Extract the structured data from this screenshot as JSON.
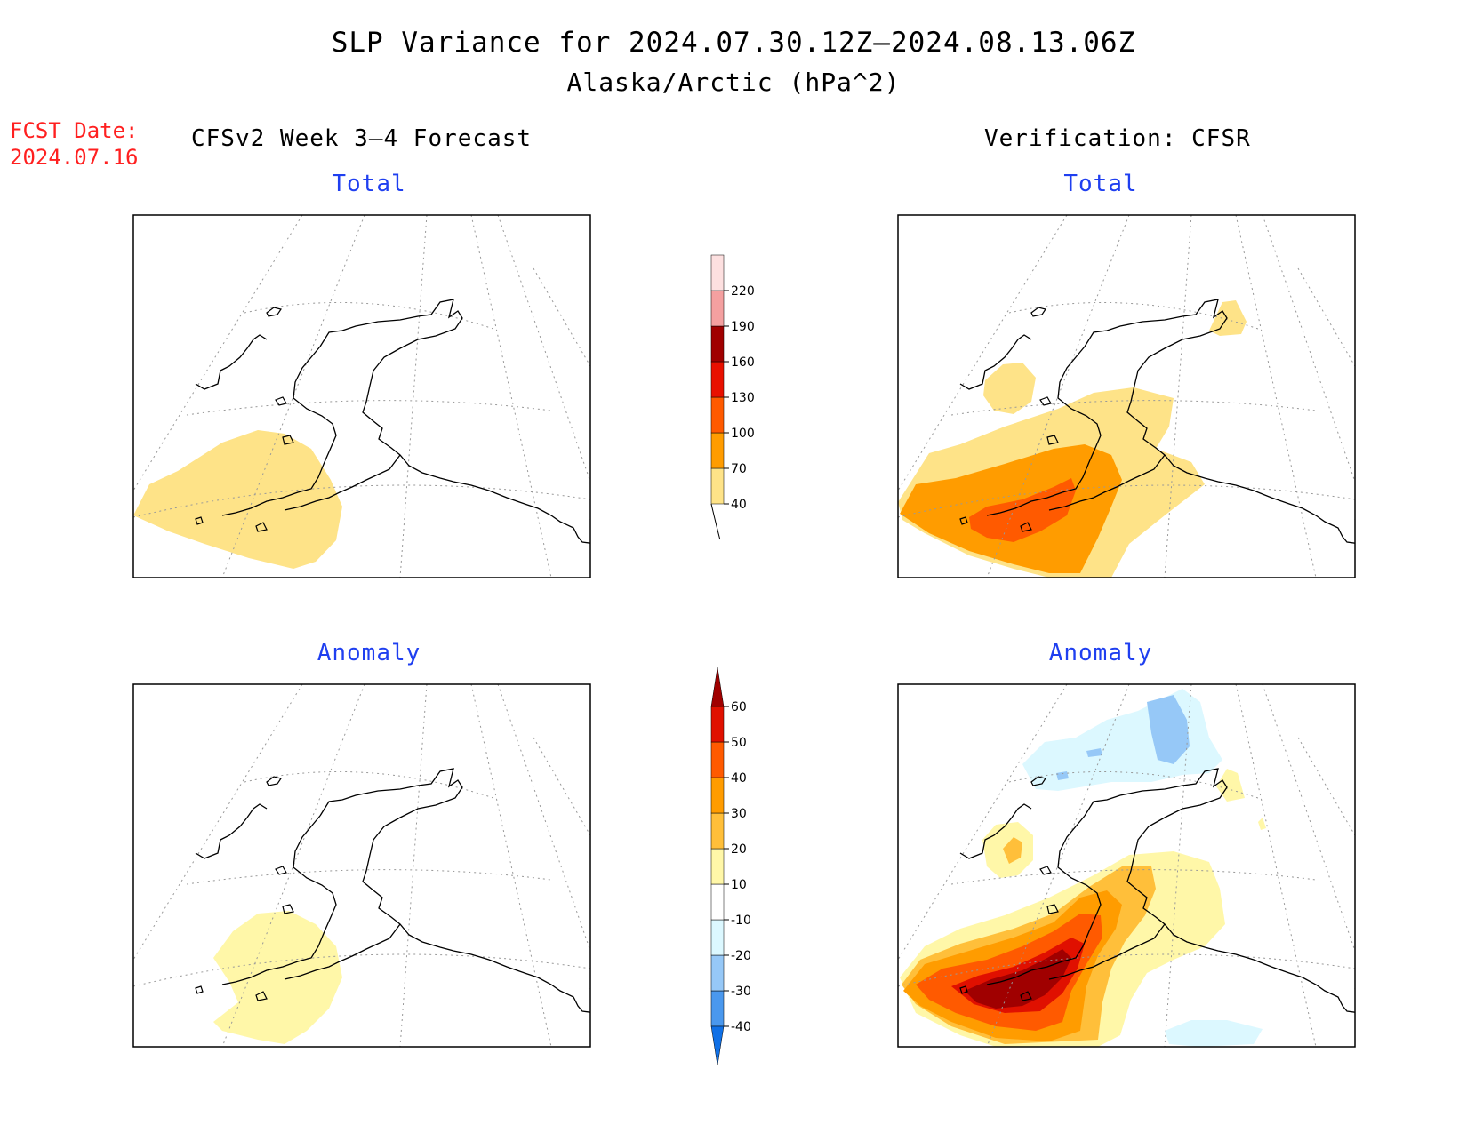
{
  "header": {
    "title": "SLP Variance for 2024.07.30.12Z–2024.08.13.06Z",
    "subtitle": "Alaska/Arctic (hPa^2)"
  },
  "forecast_date": {
    "label": "FCST Date:",
    "value": "2024.07.16"
  },
  "columns": {
    "left": "CFSv2 Week 3–4 Forecast",
    "right": "Verification: CFSR"
  },
  "panels": {
    "forecast_total": "Total",
    "verification_total": "Total",
    "forecast_anomaly": "Anomaly",
    "verification_anomaly": "Anomaly"
  },
  "colorbars": {
    "total": {
      "labels": [
        "40",
        "70",
        "100",
        "130",
        "160",
        "190",
        "220"
      ],
      "colors": [
        "#fee388",
        "#ff9c00",
        "#ff5a00",
        "#e81000",
        "#a00000",
        "#f4a0a0",
        "#fde0e0"
      ]
    },
    "anomaly": {
      "labels": [
        "-40",
        "-30",
        "-20",
        "-10",
        "10",
        "20",
        "30",
        "40",
        "50",
        "60"
      ],
      "colors": [
        "#1070e6",
        "#4a98ee",
        "#96c8f7",
        "#dcf8ff",
        "#ffffff",
        "#fff7a8",
        "#ffbf3a",
        "#ff9c00",
        "#ff5a00",
        "#e01000",
        "#a00000"
      ]
    }
  }
}
